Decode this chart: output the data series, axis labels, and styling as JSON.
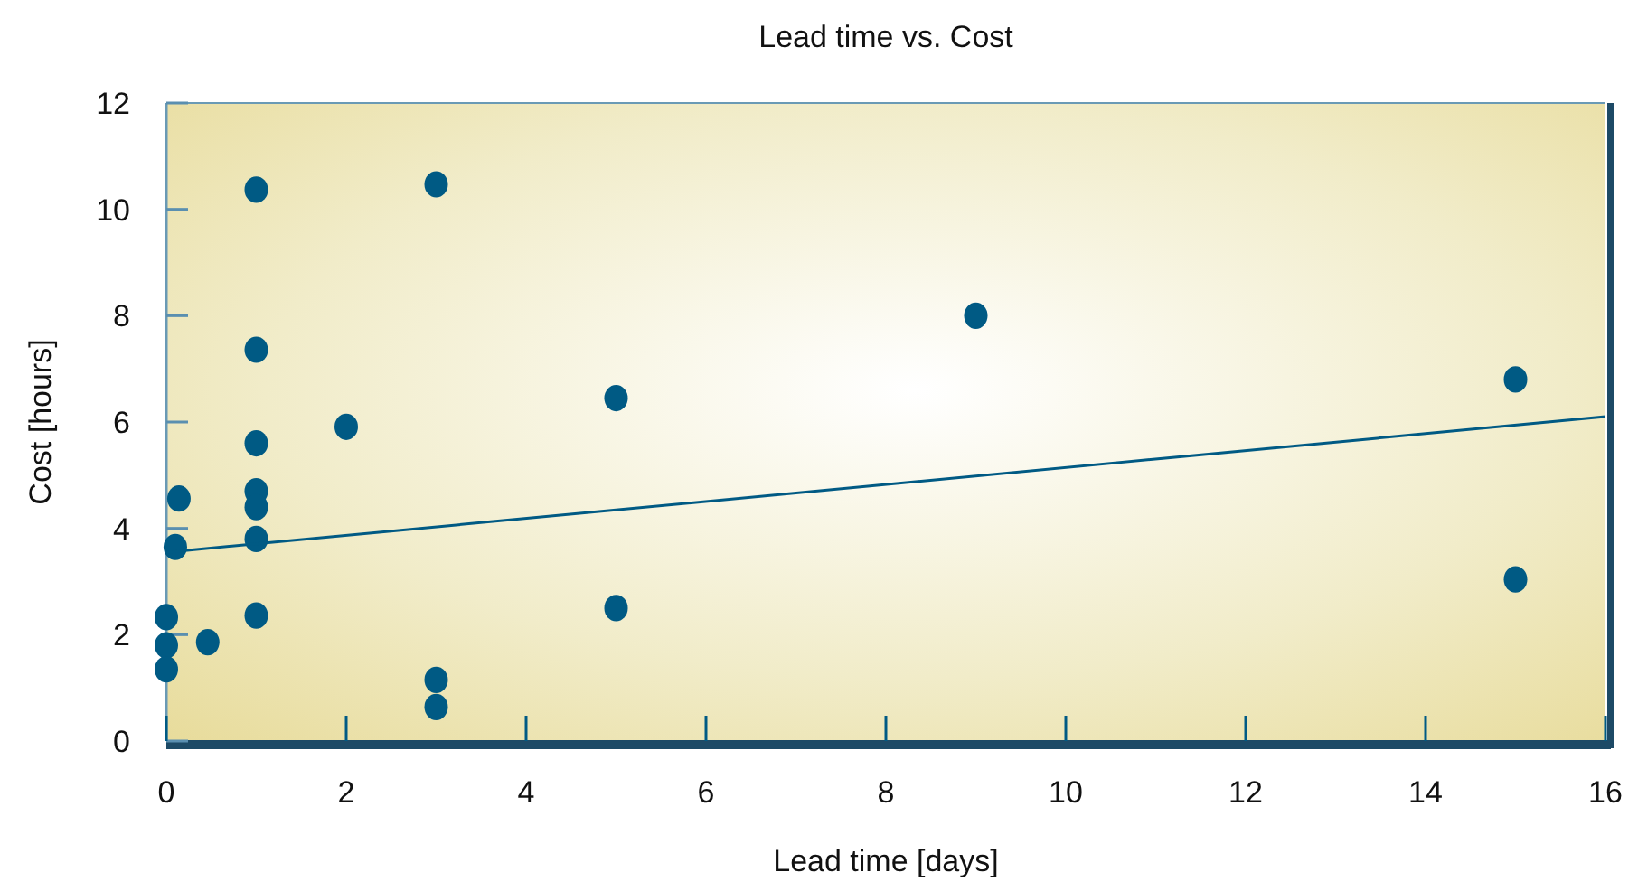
{
  "chart_data": {
    "type": "scatter",
    "title": "Lead time vs. Cost",
    "xlabel": "Lead time [days]",
    "ylabel": "Cost [hours]",
    "xlim": [
      0,
      16
    ],
    "xticks": [
      0,
      2,
      4,
      6,
      8,
      10,
      12,
      14,
      16
    ],
    "ylim": [
      0,
      12
    ],
    "yticks": [
      0,
      2,
      4,
      6,
      8,
      10,
      12
    ],
    "grid": false,
    "series": [
      {
        "color": "#005a84",
        "marker": "circle",
        "x": [
          1,
          3,
          1,
          2,
          1,
          1,
          1,
          1,
          0.14,
          0.1,
          0,
          0,
          0,
          0.46,
          1,
          3,
          3,
          5,
          5,
          9,
          15,
          15
        ],
        "values": [
          10.37,
          10.47,
          7.36,
          5.91,
          5.6,
          4.7,
          4.4,
          3.8,
          4.56,
          3.65,
          2.33,
          1.8,
          1.35,
          1.86,
          2.36,
          1.15,
          0.64,
          6.45,
          2.5,
          8.0,
          6.8,
          3.04
        ]
      },
      {
        "type": "line",
        "marker": "none",
        "color": "#005a84",
        "x": [
          0,
          16
        ],
        "values": [
          3.55,
          6.1
        ]
      }
    ]
  }
}
